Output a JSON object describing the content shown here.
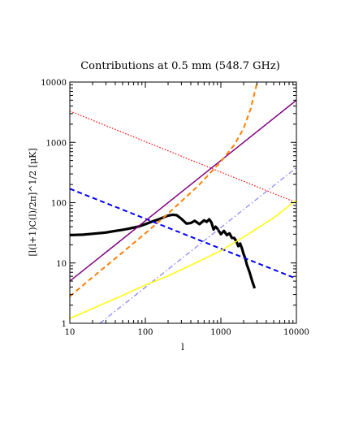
{
  "chart_data": {
    "type": "line",
    "title": "Contributions at 0.5 mm (548.7 GHz)",
    "xlabel": "l",
    "ylabel": "[l(l+1)C(l)/2π]^1/2 [μK]",
    "xscale": "log",
    "yscale": "log",
    "xlim": [
      10,
      10000
    ],
    "ylim": [
      1,
      10000
    ],
    "xtick_labels": [
      "10",
      "100",
      "1000",
      "10000"
    ],
    "ytick_labels": [
      "1",
      "10",
      "100",
      "1000",
      "10000"
    ],
    "grid": false,
    "legend": "none",
    "series": [
      {
        "color": "#000000",
        "style": "solid-thick",
        "x": [
          10,
          15,
          20,
          30,
          40,
          50,
          60,
          80,
          100,
          120,
          150,
          180,
          200,
          230,
          260,
          300,
          350,
          400,
          450,
          520,
          600,
          650,
          700,
          750,
          800,
          850,
          900,
          1000,
          1100,
          1200,
          1300,
          1400,
          1500,
          1600,
          1700,
          1800,
          1900,
          2000,
          2100,
          2200,
          2400,
          2600,
          2800
        ],
        "y": [
          29,
          29.5,
          30.5,
          32,
          34,
          35.5,
          37,
          40,
          44,
          48,
          53,
          58,
          61,
          63,
          62,
          54,
          45,
          46,
          50,
          44,
          51,
          48,
          53,
          47,
          36,
          40,
          37,
          30,
          34,
          29,
          31,
          26,
          26,
          23,
          19,
          21,
          17.5,
          14,
          12,
          9.5,
          7,
          5,
          3.8
        ]
      },
      {
        "color": "#ff0000",
        "style": "dotted",
        "x": [
          10,
          10000
        ],
        "y": [
          3300,
          100
        ]
      },
      {
        "color": "#0000ff",
        "style": "dashed",
        "x": [
          10,
          10000
        ],
        "y": [
          170,
          5.5
        ]
      },
      {
        "color": "#800080",
        "style": "solid",
        "x": [
          10,
          10000
        ],
        "y": [
          5,
          5000
        ]
      },
      {
        "color": "#ff7f00",
        "style": "dashed",
        "x": [
          10,
          20,
          50,
          100,
          200,
          500,
          1000,
          1500,
          2000,
          2500,
          3000
        ],
        "y": [
          2.8,
          5.8,
          15,
          31,
          66,
          190,
          480,
          900,
          1700,
          3700,
          9500
        ]
      },
      {
        "color": "#8080ff",
        "style": "dash-dot",
        "x": [
          25,
          10000
        ],
        "y": [
          1,
          380
        ]
      },
      {
        "color": "#ffff00",
        "style": "solid",
        "x": [
          10,
          50,
          100,
          200,
          500,
          1000,
          2000,
          5000,
          10000
        ],
        "y": [
          1.2,
          2.9,
          4.3,
          6.1,
          10.5,
          16,
          27,
          56,
          110
        ]
      }
    ]
  }
}
